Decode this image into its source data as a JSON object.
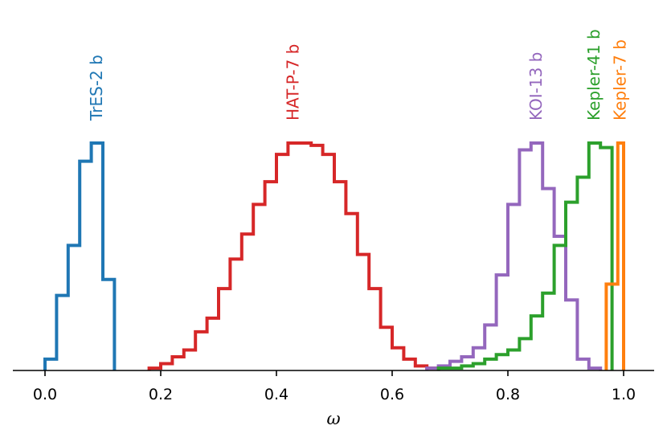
{
  "chart_data": {
    "type": "histogram",
    "xlabel": "ω",
    "ylabel": "",
    "xlim": [
      -0.06,
      1.06
    ],
    "x_ticks": [
      0.0,
      0.2,
      0.4,
      0.6,
      0.8,
      1.0
    ],
    "x_tick_labels": [
      "0.0",
      "0.2",
      "0.4",
      "0.6",
      "0.8",
      "1.0"
    ],
    "y_axis_visible": false,
    "grid": false,
    "normalized_peak": 1.0,
    "series": [
      {
        "name": "TrES-2 b",
        "color": "#1f77b4",
        "bin_width": 0.02,
        "x_start": 0.0,
        "values": [
          0.05,
          0.33,
          0.55,
          0.92,
          1.0,
          0.4,
          0.05
        ],
        "x_end": 0.12
      },
      {
        "name": "HAT-P-7 b",
        "color": "#d62728",
        "bin_width": 0.02,
        "x_start": 0.18,
        "values": [
          0.01,
          0.03,
          0.06,
          0.09,
          0.17,
          0.23,
          0.36,
          0.49,
          0.6,
          0.73,
          0.83,
          0.95,
          1.0,
          1.0,
          0.99,
          0.95,
          0.83,
          0.69,
          0.51,
          0.36,
          0.19,
          0.1,
          0.05,
          0.02,
          0.01
        ],
        "x_end": 0.68
      },
      {
        "name": "KOI-13 b",
        "color": "#9467bd",
        "bin_width": 0.02,
        "x_start": 0.66,
        "values": [
          0.01,
          0.02,
          0.04,
          0.06,
          0.1,
          0.2,
          0.42,
          0.73,
          0.97,
          1.0,
          0.8,
          0.59,
          0.31,
          0.05,
          0.01
        ],
        "x_end": 0.96
      },
      {
        "name": "Kepler-41 b",
        "color": "#2ca02c",
        "bin_width": 0.02,
        "x_start": 0.68,
        "values": [
          0.01,
          0.01,
          0.02,
          0.03,
          0.05,
          0.07,
          0.09,
          0.14,
          0.24,
          0.34,
          0.55,
          0.74,
          0.85,
          1.0,
          0.98,
          0.0
        ],
        "x_end": 0.98
      },
      {
        "name": "Kepler-7 b",
        "color": "#ff7f0e",
        "bin_width": 0.02,
        "x_start": 0.97,
        "values": [
          0.38,
          1.0
        ],
        "x_end": 1.0
      }
    ]
  }
}
